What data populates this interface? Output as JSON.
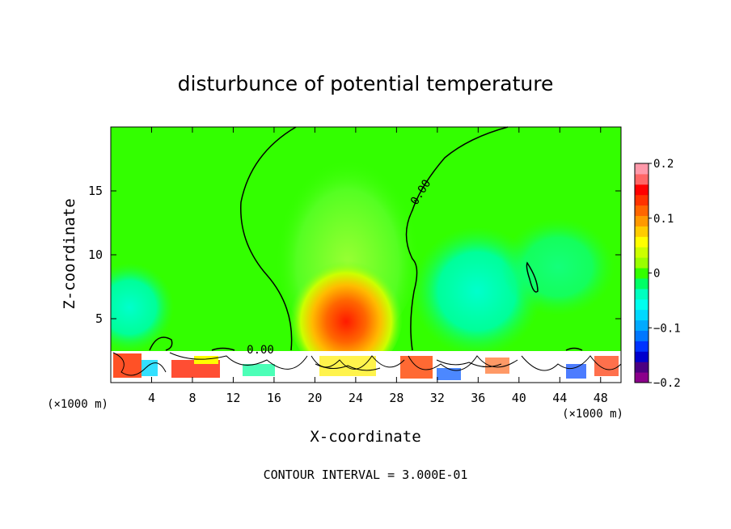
{
  "chart_data": {
    "type": "heatmap",
    "title": "disturbunce of potential temperature",
    "xlabel": "X-coordinate",
    "ylabel": "Z-coordinate",
    "x_units_left": "(×1000 m)",
    "x_units_right": "(×1000 m)",
    "xlim": [
      0,
      50
    ],
    "ylim": [
      0,
      20
    ],
    "xticks": [
      4,
      8,
      12,
      16,
      20,
      24,
      28,
      32,
      36,
      40,
      44,
      48
    ],
    "yticks": [
      5,
      10,
      15
    ],
    "contour_interval_text": "CONTOUR INTERVAL = 3.000E-01",
    "contour_labels": [
      {
        "text": "0.00",
        "x": 31.0,
        "z": 14.8
      },
      {
        "text": "0.00",
        "x": 14.5,
        "z": 2.6
      }
    ],
    "colorbar": {
      "range": [
        -0.2,
        0.2
      ],
      "tick_values": [
        0.2,
        0.1,
        0,
        -0.1,
        -0.2
      ],
      "tick_labels": [
        "0.2",
        "0.1",
        "0",
        "−0.1",
        "−0.2"
      ],
      "colors": [
        "#8b008b",
        "#4b0082",
        "#0000cd",
        "#0033ff",
        "#0077ff",
        "#00aaff",
        "#00d8ff",
        "#00ffee",
        "#00ffbf",
        "#00ff66",
        "#33ff00",
        "#99ff00",
        "#ccff00",
        "#ffff00",
        "#ffcc00",
        "#ff9900",
        "#ff6600",
        "#ff3300",
        "#ff0000",
        "#ff6666",
        "#ff99aa"
      ]
    }
  }
}
